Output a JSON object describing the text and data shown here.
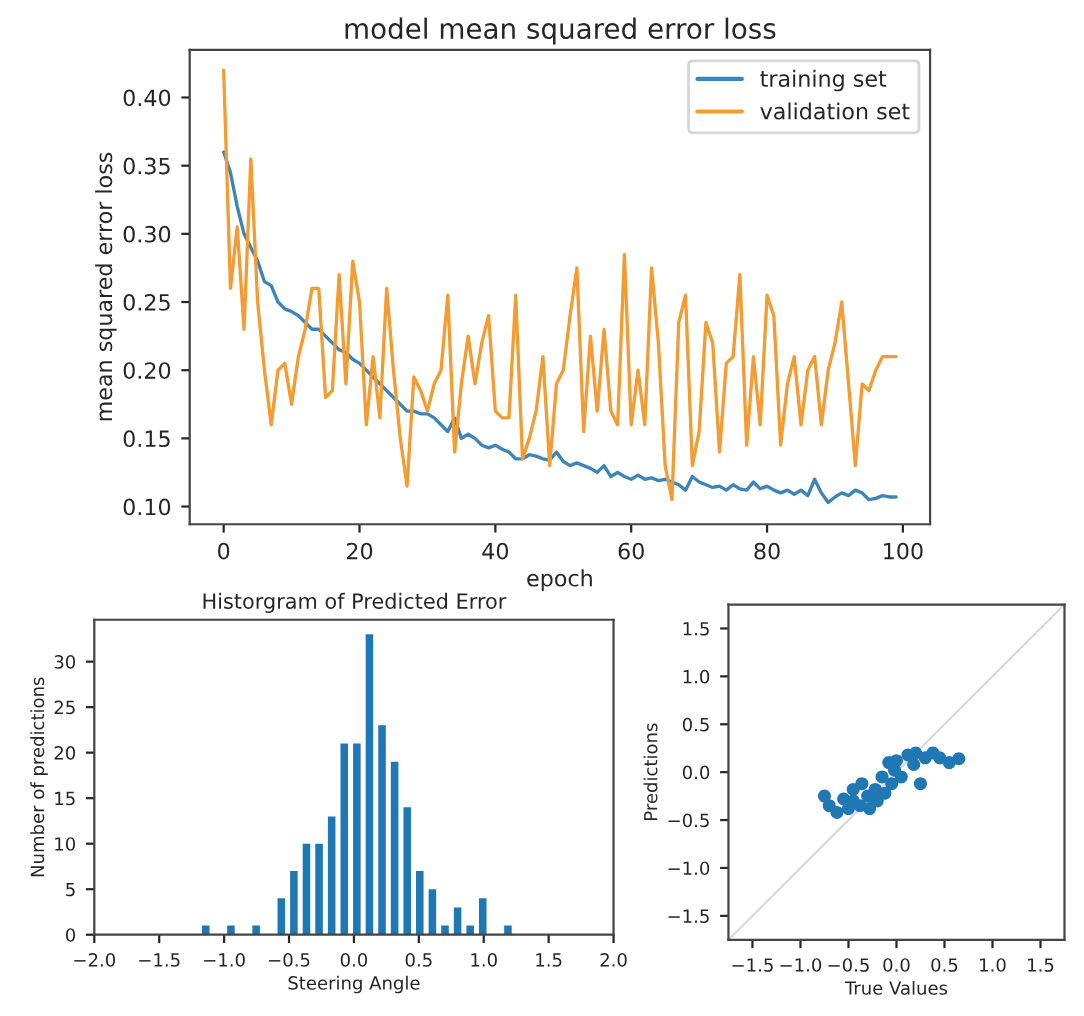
{
  "chart_data": [
    {
      "type": "line",
      "title": "model mean squared error loss",
      "xlabel": "epoch",
      "ylabel": "mean squared error loss",
      "xlim": [
        -5,
        104
      ],
      "ylim": [
        0.087,
        0.435
      ],
      "xticks": [
        0,
        20,
        40,
        60,
        80,
        100
      ],
      "yticks": [
        {
          "value": 0.1,
          "label": "0.10"
        },
        {
          "value": 0.15,
          "label": "0.15"
        },
        {
          "value": 0.2,
          "label": "0.20"
        },
        {
          "value": 0.25,
          "label": "0.25"
        },
        {
          "value": 0.3,
          "label": "0.30"
        },
        {
          "value": 0.35,
          "label": "0.35"
        },
        {
          "value": 0.4,
          "label": "0.40"
        }
      ],
      "grid": false,
      "legend": "top right",
      "marker": "none",
      "line_style": "solid",
      "x": [
        0,
        1,
        2,
        3,
        4,
        5,
        6,
        7,
        8,
        9,
        10,
        11,
        12,
        13,
        14,
        15,
        16,
        17,
        18,
        19,
        20,
        21,
        22,
        23,
        24,
        25,
        26,
        27,
        28,
        29,
        30,
        31,
        32,
        33,
        34,
        35,
        36,
        37,
        38,
        39,
        40,
        41,
        42,
        43,
        44,
        45,
        46,
        47,
        48,
        49,
        50,
        51,
        52,
        53,
        54,
        55,
        56,
        57,
        58,
        59,
        60,
        61,
        62,
        63,
        64,
        65,
        66,
        67,
        68,
        69,
        70,
        71,
        72,
        73,
        74,
        75,
        76,
        77,
        78,
        79,
        80,
        81,
        82,
        83,
        84,
        85,
        86,
        87,
        88,
        89,
        90,
        91,
        92,
        93,
        94,
        95,
        96,
        97,
        98,
        99
      ],
      "series": [
        {
          "name": "training set",
          "color": "#3d85b8",
          "values": [
            0.36,
            0.345,
            0.32,
            0.3,
            0.29,
            0.28,
            0.265,
            0.262,
            0.25,
            0.245,
            0.243,
            0.24,
            0.235,
            0.23,
            0.23,
            0.225,
            0.22,
            0.215,
            0.213,
            0.208,
            0.205,
            0.2,
            0.195,
            0.19,
            0.185,
            0.18,
            0.175,
            0.17,
            0.17,
            0.168,
            0.168,
            0.165,
            0.16,
            0.155,
            0.165,
            0.15,
            0.153,
            0.15,
            0.145,
            0.143,
            0.145,
            0.142,
            0.14,
            0.135,
            0.135,
            0.138,
            0.137,
            0.135,
            0.134,
            0.14,
            0.133,
            0.13,
            0.132,
            0.13,
            0.128,
            0.125,
            0.13,
            0.122,
            0.125,
            0.122,
            0.12,
            0.123,
            0.12,
            0.121,
            0.119,
            0.12,
            0.118,
            0.116,
            0.112,
            0.122,
            0.118,
            0.116,
            0.114,
            0.115,
            0.112,
            0.116,
            0.113,
            0.112,
            0.118,
            0.113,
            0.115,
            0.112,
            0.11,
            0.112,
            0.109,
            0.112,
            0.108,
            0.12,
            0.11,
            0.103,
            0.107,
            0.11,
            0.108,
            0.112,
            0.11,
            0.105,
            0.106,
            0.108,
            0.107,
            0.107
          ]
        },
        {
          "name": "validation set",
          "color": "#f39c34",
          "values": [
            0.42,
            0.26,
            0.305,
            0.23,
            0.355,
            0.25,
            0.2,
            0.16,
            0.2,
            0.205,
            0.175,
            0.21,
            0.23,
            0.26,
            0.26,
            0.18,
            0.185,
            0.27,
            0.19,
            0.28,
            0.25,
            0.16,
            0.21,
            0.165,
            0.26,
            0.2,
            0.15,
            0.115,
            0.195,
            0.185,
            0.17,
            0.19,
            0.2,
            0.255,
            0.14,
            0.19,
            0.225,
            0.19,
            0.22,
            0.24,
            0.17,
            0.165,
            0.165,
            0.255,
            0.135,
            0.15,
            0.17,
            0.21,
            0.13,
            0.19,
            0.2,
            0.24,
            0.275,
            0.155,
            0.225,
            0.17,
            0.23,
            0.17,
            0.16,
            0.285,
            0.16,
            0.2,
            0.16,
            0.275,
            0.22,
            0.13,
            0.105,
            0.235,
            0.255,
            0.13,
            0.155,
            0.235,
            0.22,
            0.14,
            0.205,
            0.21,
            0.27,
            0.145,
            0.21,
            0.16,
            0.255,
            0.24,
            0.145,
            0.19,
            0.21,
            0.16,
            0.2,
            0.21,
            0.16,
            0.2,
            0.22,
            0.25,
            0.19,
            0.13,
            0.19,
            0.185,
            0.2,
            0.21,
            0.21,
            0.21
          ]
        }
      ]
    },
    {
      "type": "histogram",
      "title": "Historgram of Predicted Error",
      "xlabel": "Steering Angle",
      "ylabel": "Number of predictions",
      "color": "#1f77b4",
      "xlim": [
        -2,
        2
      ],
      "ylim": [
        0,
        34.6
      ],
      "xticks": [
        {
          "value": -2,
          "label": "−2.0"
        },
        {
          "value": -1.5,
          "label": "−1.5"
        },
        {
          "value": -1,
          "label": "−1.0"
        },
        {
          "value": -0.5,
          "label": "−0.5"
        },
        {
          "value": 0,
          "label": "0.0"
        },
        {
          "value": 0.5,
          "label": "0.5"
        },
        {
          "value": 1,
          "label": "1.0"
        },
        {
          "value": 1.5,
          "label": "1.5"
        },
        {
          "value": 2,
          "label": "2.0"
        }
      ],
      "yticks": [
        0,
        5,
        10,
        15,
        20,
        25,
        30
      ],
      "grid": false,
      "bins": [
        -1.19,
        -1.093,
        -0.996,
        -0.899,
        -0.802,
        -0.705,
        -0.608,
        -0.511,
        -0.414,
        -0.317,
        -0.22,
        -0.123,
        -0.026,
        0.071,
        0.168,
        0.265,
        0.362,
        0.459,
        0.556,
        0.653,
        0.75,
        0.847,
        0.944,
        1.041,
        1.138,
        1.235
      ],
      "values": [
        1,
        0,
        1,
        0,
        1,
        0,
        4,
        7,
        10,
        10,
        13,
        21,
        21,
        33,
        23,
        19,
        14,
        7,
        5,
        1,
        3,
        1,
        4,
        0,
        1
      ]
    },
    {
      "type": "scatter",
      "xlabel": "True Values",
      "ylabel": "Predictions",
      "xlim": [
        -1.75,
        1.75
      ],
      "ylim": [
        -1.75,
        1.75
      ],
      "xticks": [
        {
          "value": -1.5,
          "label": "−1.5"
        },
        {
          "value": -1,
          "label": "−1.0"
        },
        {
          "value": -0.5,
          "label": "−0.5"
        },
        {
          "value": 0,
          "label": "0.0"
        },
        {
          "value": 0.5,
          "label": "0.5"
        },
        {
          "value": 1,
          "label": "1.0"
        },
        {
          "value": 1.5,
          "label": "1.5"
        }
      ],
      "yticks": [
        {
          "value": -1.5,
          "label": "−1.5"
        },
        {
          "value": -1,
          "label": "−1.0"
        },
        {
          "value": -0.5,
          "label": "−0.5"
        },
        {
          "value": 0,
          "label": "0.0"
        },
        {
          "value": 0.5,
          "label": "0.5"
        },
        {
          "value": 1,
          "label": "1.0"
        },
        {
          "value": 1.5,
          "label": "1.5"
        }
      ],
      "grid": false,
      "series": [
        {
          "type": "line",
          "color": "#d9d9d9",
          "x": [
            -1.75,
            1.75
          ],
          "values": [
            -1.75,
            1.75
          ]
        },
        {
          "type": "scatter",
          "color": "#1f77b4",
          "marker": "circle",
          "x": [
            -0.75,
            -0.7,
            -0.62,
            -0.55,
            -0.5,
            -0.45,
            -0.45,
            -0.38,
            -0.36,
            -0.3,
            -0.28,
            -0.22,
            -0.2,
            -0.15,
            -0.12,
            -0.08,
            -0.05,
            -0.02,
            0.0,
            0.05,
            0.12,
            0.18,
            0.2,
            0.25,
            0.3,
            0.38,
            0.45,
            0.55,
            0.65
          ],
          "values": [
            -0.25,
            -0.35,
            -0.42,
            -0.28,
            -0.38,
            -0.18,
            -0.3,
            -0.35,
            -0.12,
            -0.25,
            -0.38,
            -0.18,
            -0.3,
            -0.05,
            -0.22,
            0.1,
            -0.12,
            0.02,
            0.12,
            -0.05,
            0.18,
            0.08,
            0.2,
            -0.12,
            0.15,
            0.2,
            0.15,
            0.1,
            0.14
          ]
        }
      ]
    }
  ]
}
